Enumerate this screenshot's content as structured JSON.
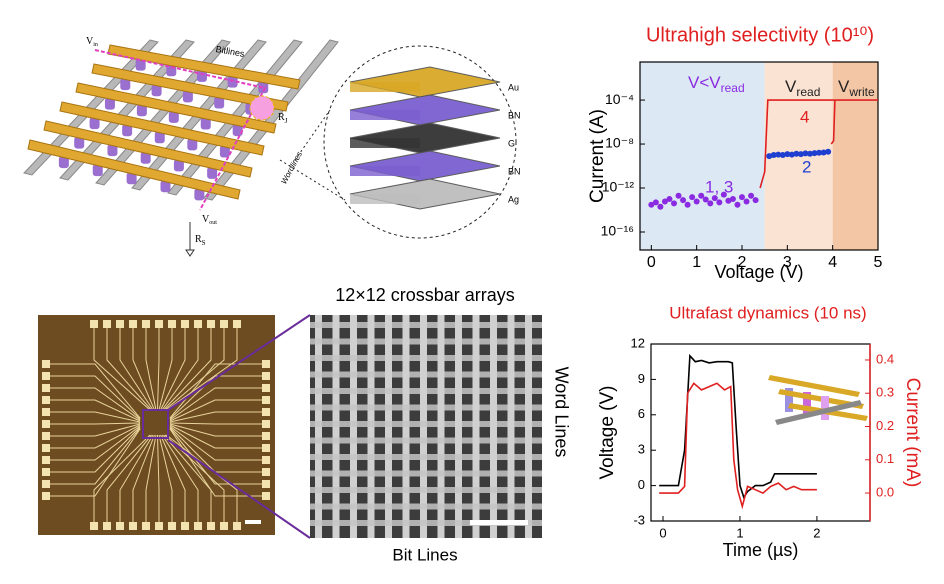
{
  "crossbar_labels": [
    "Bitlines",
    "Wordlines"
  ],
  "terminals": [
    {
      "text": "V",
      "sub": "in"
    },
    {
      "text": "R",
      "sub": "J"
    },
    {
      "text": "V",
      "sub": "out"
    },
    {
      "text": "R",
      "sub": "S"
    }
  ],
  "layers": [
    "Au",
    "BN",
    "G",
    "BN",
    "Ag"
  ],
  "array_caption": "12×12 crossbar arrays",
  "word_lines": "Word Lines",
  "bit_lines": "Bit Lines",
  "chart_data": [
    {
      "type": "scatter",
      "title": "Ultrahigh selectivity (10¹⁰)",
      "x_label": "Voltage (V)",
      "y_label": "Current (A)",
      "log_y": true,
      "xlim": [
        -0.25,
        5
      ],
      "xticks": [
        0,
        1,
        2,
        3,
        4,
        5
      ],
      "ylim": [
        2.3e-18,
        0.29
      ],
      "yticks": [
        {
          "value": 1e-16,
          "label": "10⁻¹⁶"
        },
        {
          "value": 1e-12,
          "label": "10⁻¹²"
        },
        {
          "value": 1e-08,
          "label": "10⁻⁸"
        },
        {
          "value": 0.0001,
          "label": "10⁻⁴"
        }
      ],
      "regions": [
        {
          "text": "V<V",
          "sub": "read",
          "to": 2.5,
          "color": "#dce8f4",
          "label_color": "#8a2be2"
        },
        {
          "text": "V",
          "sub": "read",
          "to": 4,
          "color": "#fbe3d3",
          "label_color": "#222222"
        },
        {
          "text": "V",
          "sub": "write",
          "to": 5,
          "color": "#f3c6a6",
          "label_color": "#222222"
        }
      ],
      "series": [
        {
          "name": "1, 3",
          "color": "#8a2be2",
          "style": "markers",
          "x": [
            0,
            0.1,
            0.2,
            0.3,
            0.4,
            0.5,
            0.6,
            0.7,
            0.8,
            0.9,
            1.0,
            1.1,
            1.2,
            1.3,
            1.4,
            1.5,
            1.6,
            1.7,
            1.8,
            1.9,
            2.0,
            2.1,
            2.2,
            2.3
          ],
          "values": [
            3e-14,
            5e-14,
            2e-14,
            6e-14,
            1e-13,
            4e-14,
            2e-13,
            8e-14,
            3e-14,
            1.5e-13,
            6e-14,
            2e-13,
            9e-14,
            4e-14,
            1.2e-13,
            5e-14,
            2.5e-13,
            7e-14,
            1e-13,
            3e-14,
            1.5e-13,
            6e-14,
            2e-13,
            8e-14
          ]
        },
        {
          "name": "2",
          "color": "#1f3fd0",
          "style": "markers",
          "x": [
            2.6,
            2.7,
            2.8,
            2.9,
            3.0,
            3.1,
            3.2,
            3.3,
            3.4,
            3.5,
            3.6,
            3.7,
            3.8,
            3.9
          ],
          "values": [
            8e-10,
            1e-09,
            1.1e-09,
            1e-09,
            1.2e-09,
            1.1e-09,
            1.3e-09,
            1.2e-09,
            1.4e-09,
            1.3e-09,
            1.5e-09,
            1.6e-09,
            1.7e-09,
            2e-09
          ]
        },
        {
          "name": "4",
          "color": "#e02020",
          "style": "line",
          "x": [
            2.4,
            2.5,
            2.57,
            5.0,
            null,
            3.97,
            4.02,
            4.05
          ],
          "values": [
            1e-12,
            3e-11,
            0.0001,
            0.0001,
            null,
            1e-08,
            2e-08,
            0.0001
          ]
        }
      ]
    },
    {
      "type": "line",
      "title": "Ultrafast dynamics (10 ns)",
      "x_label": "Time (µs)",
      "y_label": "Voltage (V)",
      "y2_label": "Current (mA)",
      "xlim": [
        -0.156,
        2.69
      ],
      "xticks": [
        0,
        1,
        2
      ],
      "ylim": [
        -3,
        12
      ],
      "yticks": [
        -3,
        0,
        3,
        6,
        9,
        12
      ],
      "y2lim": [
        -0.084,
        0.448
      ],
      "y2ticks": [
        {
          "value": 0,
          "label": "0.0"
        },
        0.1,
        0.2,
        0.3,
        0.4
      ],
      "series": [
        {
          "name": "Voltage",
          "color": "#000000",
          "style": "line",
          "x": [
            -0.05,
            0.2,
            0.28,
            0.35,
            0.42,
            0.5,
            0.6,
            0.7,
            0.85,
            0.9,
            0.95,
            1.0,
            1.05,
            1.1,
            1.2,
            1.3,
            1.4,
            1.45,
            1.5,
            1.6,
            1.8,
            2.0
          ],
          "values": [
            0,
            0,
            3,
            11,
            10.5,
            10.6,
            10.4,
            10.5,
            10.5,
            10.4,
            5,
            0,
            -1,
            -0.5,
            0,
            0,
            0.3,
            1,
            1,
            1,
            1,
            1
          ]
        },
        {
          "name": "Current",
          "color": "#e02020",
          "style": "line",
          "axis": "y2",
          "x": [
            -0.05,
            0.2,
            0.28,
            0.32,
            0.4,
            0.5,
            0.6,
            0.7,
            0.8,
            0.88,
            0.92,
            0.97,
            1.03,
            1.1,
            1.2,
            1.3,
            1.4,
            1.5,
            1.6,
            1.7,
            1.8,
            2.0
          ],
          "values": [
            0,
            0,
            0.02,
            0.3,
            0.33,
            0.31,
            0.32,
            0.33,
            0.31,
            0.32,
            0.1,
            0.01,
            -0.04,
            0.02,
            0.01,
            0,
            0.02,
            0.03,
            0.01,
            0.02,
            0.01,
            0.01
          ]
        }
      ]
    }
  ]
}
